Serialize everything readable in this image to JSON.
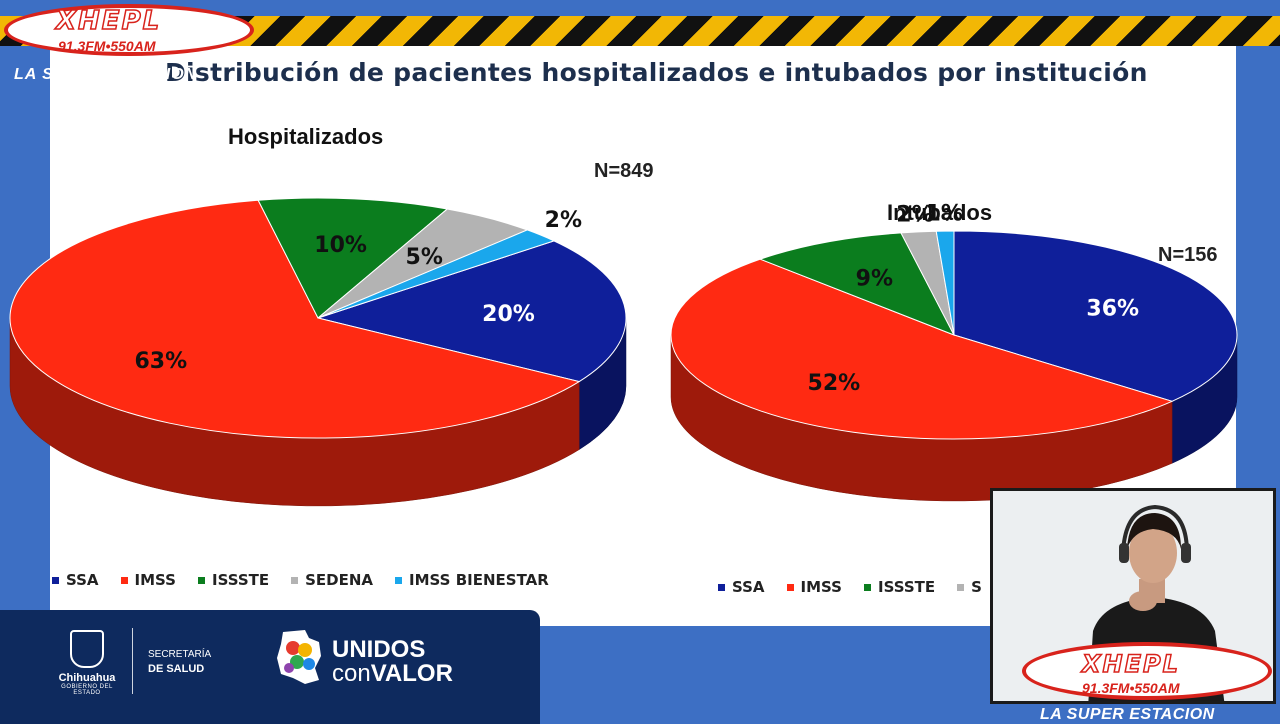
{
  "title": "Distribución de pacientes hospitalizados e intubados por institución",
  "chart_data": [
    {
      "type": "pie",
      "title": "Hospitalizados",
      "n_label": "N=849",
      "slices": [
        {
          "name": "SSA",
          "value": 20,
          "label": "20%",
          "color": "#0f1f9a",
          "label_color": "#ffffff"
        },
        {
          "name": "IMSS",
          "value": 63,
          "label": "63%",
          "color": "#ff2a12",
          "label_color": "#111111"
        },
        {
          "name": "ISSSTE",
          "value": 10,
          "label": "10%",
          "color": "#0b7d1e",
          "label_color": "#111111"
        },
        {
          "name": "SEDENA",
          "value": 5,
          "label": "5%",
          "color": "#b3b3b3",
          "label_color": "#111111"
        },
        {
          "name": "IMSS BIENESTAR",
          "value": 2,
          "label": "2%",
          "color": "#1aa7ec",
          "label_color": "#111111"
        }
      ],
      "legend": [
        "SSA",
        "IMSS",
        "ISSSTE",
        "SEDENA",
        "IMSS BIENESTAR"
      ]
    },
    {
      "type": "pie",
      "title": "Intubados",
      "n_label": "N=156",
      "slices": [
        {
          "name": "SSA",
          "value": 36,
          "label": "36%",
          "color": "#0f1f9a",
          "label_color": "#ffffff"
        },
        {
          "name": "IMSS",
          "value": 52,
          "label": "52%",
          "color": "#ff2a12",
          "label_color": "#111111"
        },
        {
          "name": "ISSSTE",
          "value": 9,
          "label": "9%",
          "color": "#0b7d1e",
          "label_color": "#111111"
        },
        {
          "name": "SEDENA",
          "value": 2,
          "label": "2%",
          "color": "#b3b3b3",
          "label_color": "#111111"
        },
        {
          "name": "IMSS BIENESTAR",
          "value": 1,
          "label": "1%",
          "color": "#1aa7ec",
          "label_color": "#111111"
        }
      ],
      "legend": [
        "SSA",
        "IMSS",
        "ISSSTE",
        "S"
      ]
    }
  ],
  "footer": {
    "state_name": "Chihuahua",
    "state_sub": "GOBIERNO DEL ESTADO",
    "secretaria_line1": "SECRETARÍA",
    "secretaria_line2": "DE SALUD",
    "unidos_line1": "UNIDOS",
    "unidos_con": "con",
    "unidos_valor": "VALOR"
  },
  "broadcast": {
    "station": "XHEPL",
    "frequencies": "91.3FM•550AM",
    "tagline": "LA SUPER ESTACION"
  }
}
